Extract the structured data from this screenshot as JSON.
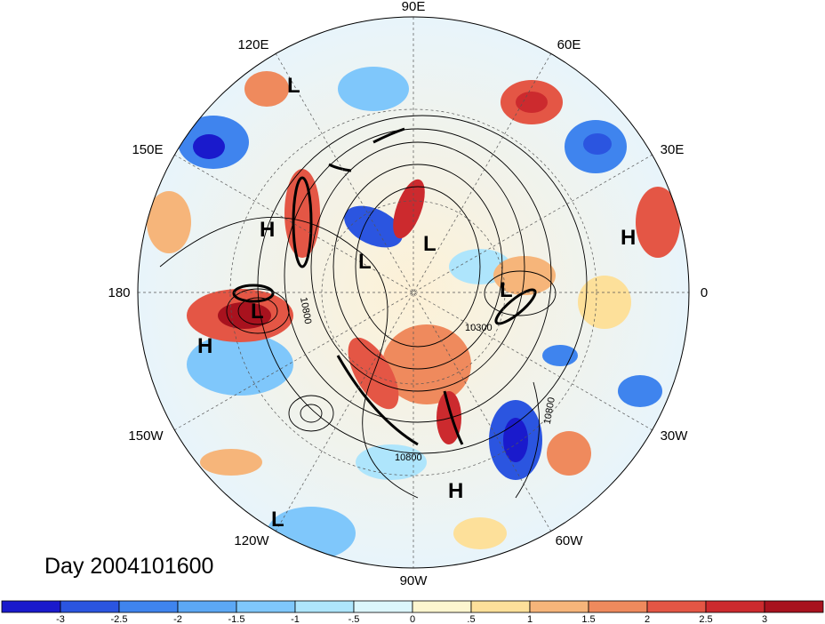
{
  "map": {
    "title": "Day 2004101600",
    "projection": "north-polar-stereographic",
    "longitude_labels": [
      "90E",
      "60E",
      "30E",
      "0",
      "30W",
      "60W",
      "90W",
      "120W",
      "150W",
      "180",
      "150E",
      "120E"
    ],
    "pressure_systems": [
      {
        "label": "L"
      },
      {
        "label": "H"
      },
      {
        "label": "L"
      },
      {
        "label": "L"
      },
      {
        "label": "L"
      },
      {
        "label": "L"
      },
      {
        "label": "H"
      },
      {
        "label": "H"
      },
      {
        "label": "H"
      },
      {
        "label": "L"
      }
    ],
    "contour_labels": [
      "10800",
      "10300",
      "10800",
      "10800"
    ]
  },
  "colorbar": {
    "ticks": [
      "-3",
      "-2.5",
      "-2",
      "-1.5",
      "-1",
      "-.5",
      "0",
      ".5",
      "1",
      "1.5",
      "2",
      "2.5",
      "3"
    ],
    "colors": [
      "#1a1acc",
      "#2b55e0",
      "#3f84ee",
      "#5ca8f5",
      "#7fc7fb",
      "#aee5fc",
      "#dcf6fc",
      "#fdf6cf",
      "#fde09a",
      "#f6b57a",
      "#ef8a5d",
      "#e45645",
      "#cc2a2e",
      "#a8121e"
    ]
  }
}
